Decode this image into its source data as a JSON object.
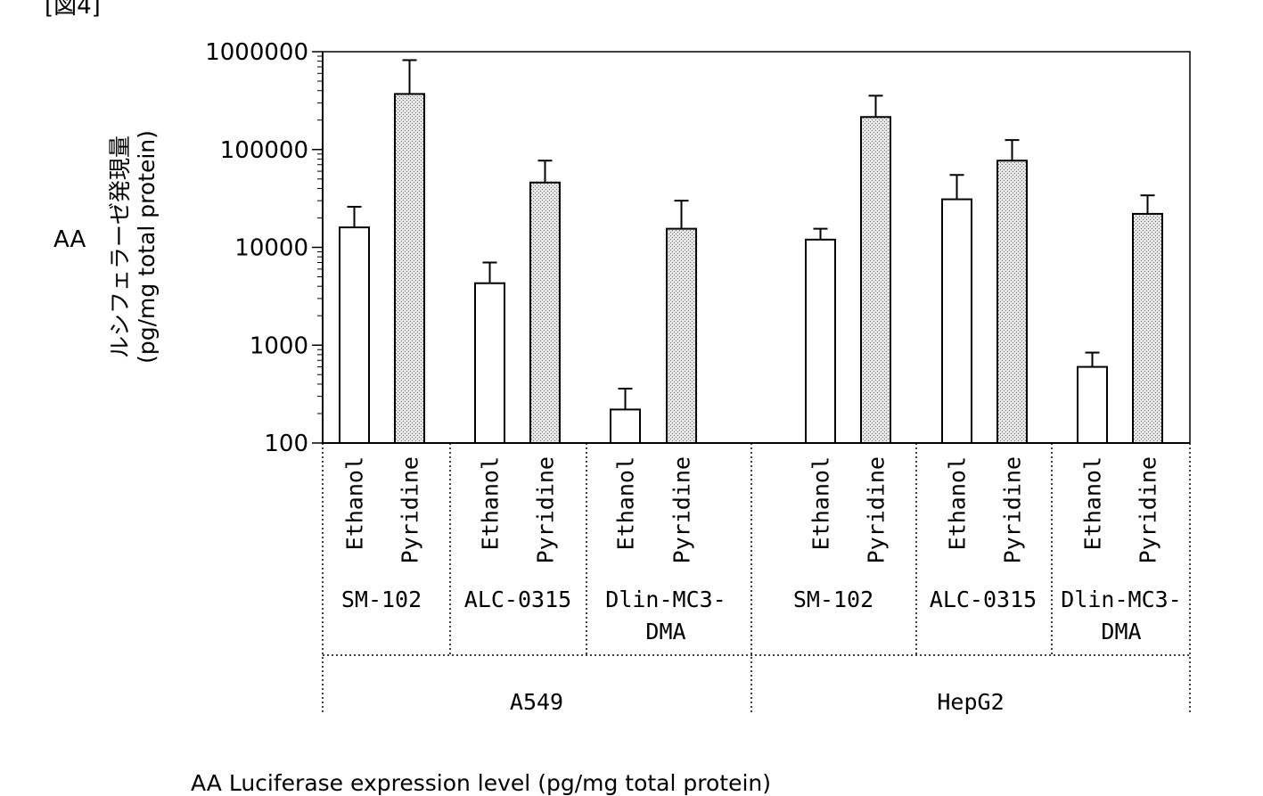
{
  "figure_label": "[図4]",
  "marker": "AA",
  "ylabel_lines": [
    "ルシフェラーゼ発現量",
    "(pg/mg total protein)"
  ],
  "caption": "AA Luciferase expression level (pg/mg total protein)",
  "chart_data": {
    "type": "bar",
    "title": "",
    "ylabel": "ルシフェラーゼ発現量 (pg/mg total protein)",
    "yscale": "log",
    "ylim": [
      100,
      1000000
    ],
    "yticks": [
      {
        "value": 100,
        "label": "100"
      },
      {
        "value": 1000,
        "label": "1000"
      },
      {
        "value": 10000,
        "label": "10000"
      },
      {
        "value": 100000,
        "label": "100000"
      },
      {
        "value": 1000000,
        "label": "1000000"
      }
    ],
    "cell_lines": [
      "A549",
      "HepG2"
    ],
    "formulations": [
      {
        "label_lines": [
          "SM-102"
        ]
      },
      {
        "label_lines": [
          "ALC-0315"
        ]
      },
      {
        "label_lines": [
          "Dlin-MC3-",
          "DMA"
        ]
      },
      {
        "label_lines": [
          "SM-102"
        ]
      },
      {
        "label_lines": [
          "ALC-0315"
        ]
      },
      {
        "label_lines": [
          "Dlin-MC3-",
          "DMA"
        ]
      }
    ],
    "series": [
      {
        "name": "Ethanol",
        "fill": "#ffffff",
        "values": [
          16000,
          4300,
          220,
          12000,
          31000,
          600
        ],
        "errors_upper": [
          26000,
          7000,
          360,
          15500,
          55000,
          840
        ]
      },
      {
        "name": "Pyridine",
        "fill": "#c8c8c8",
        "values": [
          370000,
          46000,
          15500,
          215000,
          77000,
          22000
        ],
        "errors_upper": [
          820000,
          77000,
          30000,
          355000,
          125000,
          34000
        ]
      }
    ]
  }
}
